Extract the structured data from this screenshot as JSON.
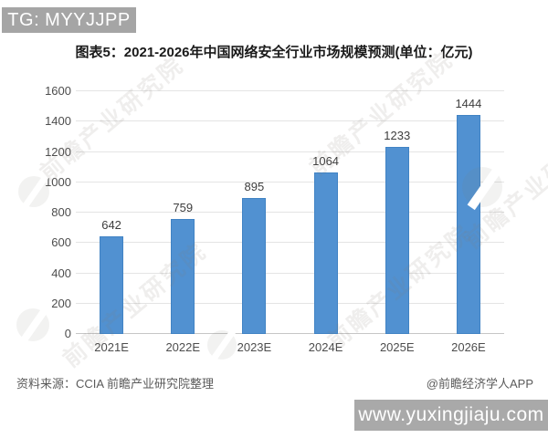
{
  "badges": {
    "top_left": "TG: MYYJJPP",
    "bottom_right": "www.yuxingjiaju.com"
  },
  "title": "图表5：2021-2026年中国网络安全行业市场规模预测(单位：亿元)",
  "source": {
    "left": "资料来源：CCIA 前瞻产业研究院整理",
    "right": "@前瞻经济学人APP"
  },
  "watermark": {
    "text": "前瞻产业研究院"
  },
  "colors": {
    "bar": "#5191d1",
    "bar_border": "#4183c4",
    "badge_bg": "#a5a5a5",
    "grid": "#e4e4e4",
    "axis": "#c6c6c6"
  },
  "chart_data": {
    "type": "bar",
    "title": "2021-2026年中国网络安全行业市场规模预测",
    "unit": "亿元",
    "categories": [
      "2021E",
      "2022E",
      "2023E",
      "2024E",
      "2025E",
      "2026E"
    ],
    "values": [
      642,
      759,
      895,
      1064,
      1233,
      1444
    ],
    "yticks": [
      0,
      200,
      400,
      600,
      800,
      1000,
      1200,
      1400,
      1600
    ],
    "ylim": [
      0,
      1600
    ],
    "ytick_step": 200,
    "grid": true,
    "legend": false,
    "xlabel": "",
    "ylabel": ""
  }
}
